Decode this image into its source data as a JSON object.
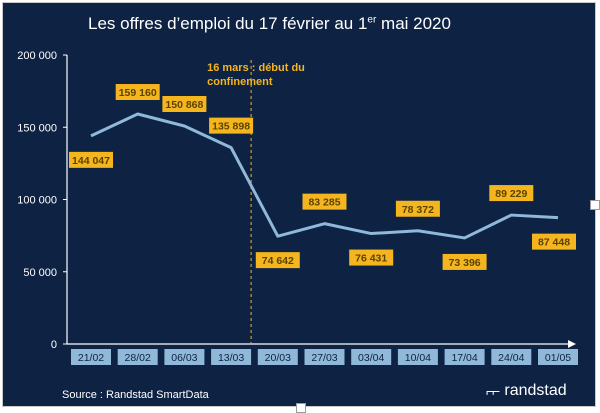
{
  "title_main": "Les offres d’emploi du 17 février au 1",
  "title_sup": "er",
  "title_end": " mai 2020",
  "source": "Source : Randstad SmartData",
  "logo_text": "randstad",
  "logo_mark": "⌐⌐",
  "chart_data": {
    "type": "line",
    "categories": [
      "21/02",
      "28/02",
      "06/03",
      "13/03",
      "20/03",
      "27/03",
      "03/04",
      "10/04",
      "17/04",
      "24/04",
      "01/05"
    ],
    "values": [
      144047,
      159160,
      150868,
      135898,
      74642,
      83285,
      76431,
      78372,
      73396,
      89229,
      87448
    ],
    "data_labels": [
      "144 047",
      "159 160",
      "150 868",
      "135 898",
      "74 642",
      "83 285",
      "76 431",
      "78 372",
      "73 396",
      "89 229",
      "87 448"
    ],
    "ylim": [
      0,
      200000
    ],
    "yticks": [
      0,
      50000,
      100000,
      150000,
      200000
    ],
    "ytick_labels": [
      "0",
      "50 000",
      "100 000",
      "150 000",
      "200 000"
    ],
    "annotation": {
      "line1": "16 mars : début du",
      "line2": "confinement",
      "x_value": "16/03"
    },
    "colors": {
      "background": "#0e2244",
      "line": "#8fb8d9",
      "label_bg": "#f5b51e",
      "label_text": "#5a4300",
      "category_bg": "#8fb8d9",
      "category_text": "#0e2244",
      "annotation": "#f5b51e"
    }
  }
}
